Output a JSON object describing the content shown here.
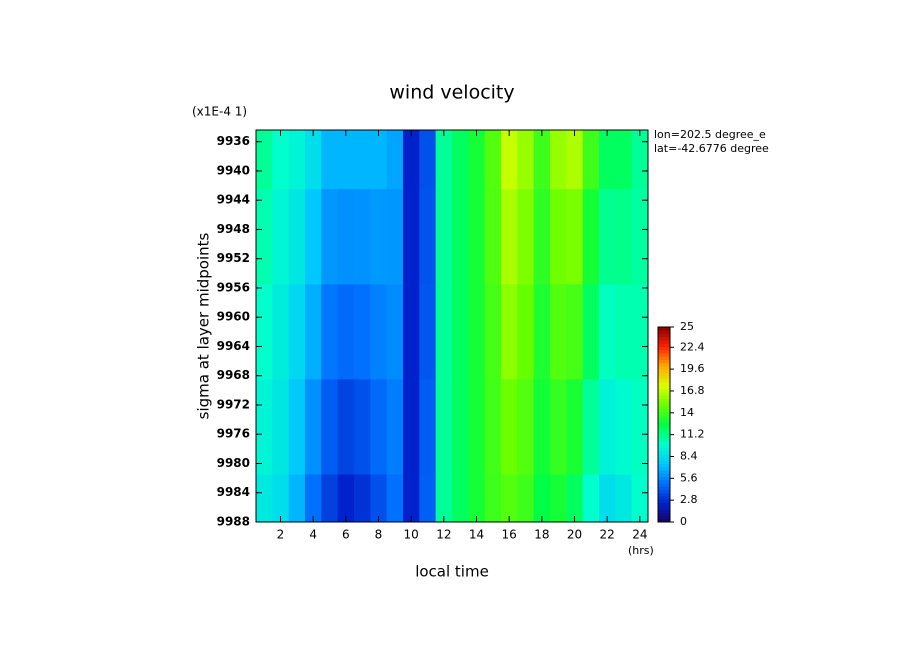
{
  "chart_data": {
    "type": "heatmap",
    "title": "wind velocity",
    "scale_note": "(x1E-4 1)",
    "xlabel": "local time",
    "xunit": "(hrs)",
    "ylabel": "sigma at layer midpoints",
    "annotations": [
      "lon=202.5 degree_e",
      "lat=-42.6776 degree"
    ],
    "x": [
      1,
      2,
      3,
      4,
      5,
      6,
      7,
      8,
      9,
      10,
      11,
      12,
      13,
      14,
      15,
      16,
      17,
      18,
      19,
      20,
      21,
      22,
      23,
      24
    ],
    "y": [
      9936,
      9949,
      9962,
      9975,
      9988
    ],
    "z": [
      [
        11,
        10,
        9.5,
        8.5,
        7,
        7,
        7,
        7,
        6.5,
        2.5,
        4,
        11,
        12,
        13,
        14.5,
        17,
        16,
        14,
        16,
        16.5,
        14,
        12,
        12,
        11
      ],
      [
        10.5,
        9.6,
        8.9,
        7.6,
        6.1,
        5.9,
        6,
        6.2,
        6.1,
        2.5,
        4.1,
        11,
        12,
        13,
        14.4,
        16.4,
        15.5,
        13.6,
        15.2,
        15.4,
        13,
        11.1,
        11.2,
        10.8
      ],
      [
        10,
        9.2,
        8.2,
        6.8,
        5.2,
        4.8,
        5,
        5.5,
        5.8,
        2.5,
        4.2,
        11,
        12,
        13,
        14.2,
        15.8,
        15,
        13.2,
        14.5,
        14.2,
        12,
        10.2,
        10.5,
        10.5
      ],
      [
        9.5,
        8.9,
        7.6,
        5.9,
        4.4,
        3.6,
        4,
        4.8,
        5.4,
        2.5,
        4.4,
        11,
        12,
        13,
        14.1,
        15.1,
        14.5,
        12.9,
        13.8,
        13.1,
        11,
        9.4,
        9.8,
        10.2
      ],
      [
        9,
        8.5,
        7,
        5,
        3.5,
        2.5,
        3,
        4,
        5,
        2.5,
        4.5,
        11,
        12,
        13,
        14,
        14.5,
        14,
        12.5,
        13,
        12,
        10,
        8.5,
        9,
        10
      ]
    ],
    "xlim": [
      0.5,
      24.5
    ],
    "xticks": [
      2,
      4,
      6,
      8,
      10,
      12,
      14,
      16,
      18,
      20,
      22,
      24
    ],
    "ylim": [
      9934.4,
      9988
    ],
    "yticks": [
      9936,
      9940,
      9944,
      9948,
      9952,
      9956,
      9960,
      9964,
      9968,
      9972,
      9976,
      9980,
      9984,
      9988
    ],
    "y_inverted": true,
    "zlim": [
      0,
      25
    ],
    "zticks": [
      0,
      2.8,
      5.6,
      8.4,
      11.2,
      14,
      16.8,
      19.6,
      22.4,
      25
    ],
    "colormap": [
      "#1a0066",
      "#0022cc",
      "#0070ff",
      "#00c8ff",
      "#00ffcc",
      "#00ff44",
      "#66ff00",
      "#ddff00",
      "#ffaa00",
      "#ff2200",
      "#880000"
    ]
  }
}
